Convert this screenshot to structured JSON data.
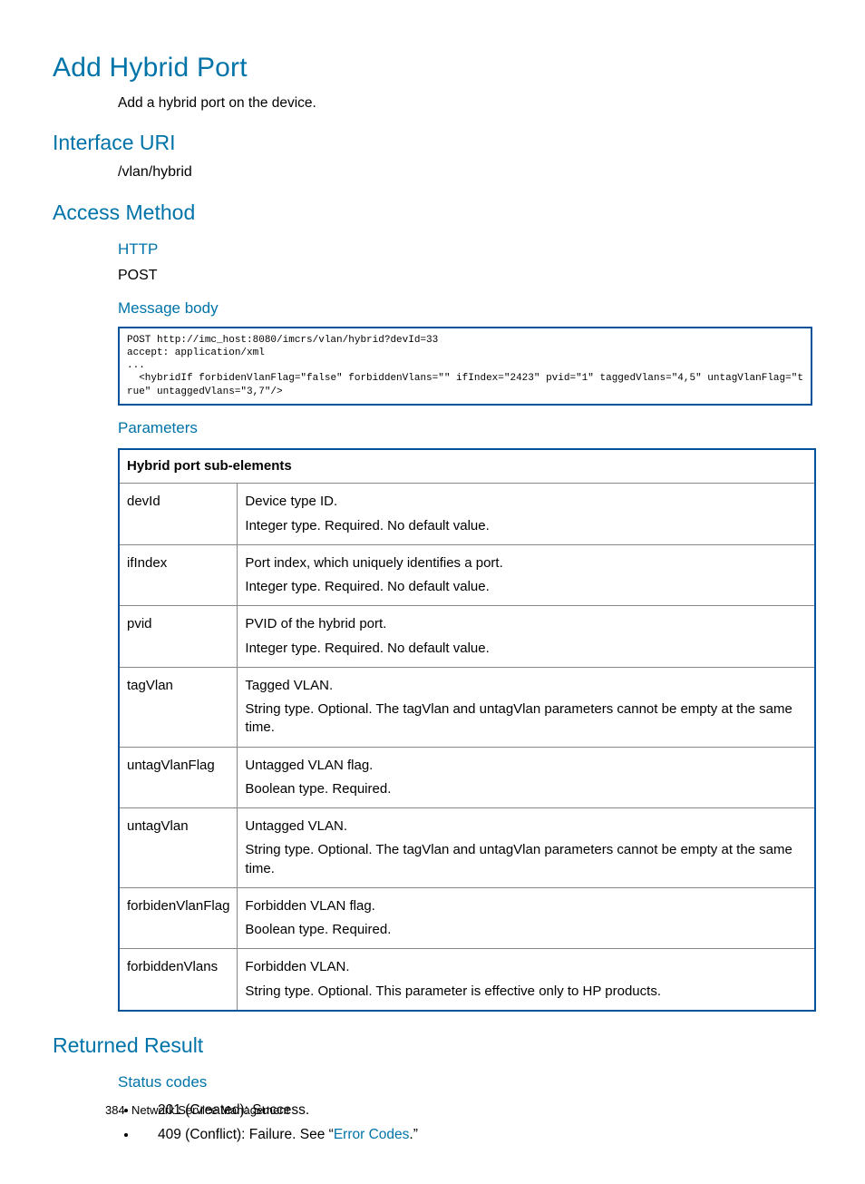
{
  "title": "Add Hybrid Port",
  "intro": "Add a hybrid port on the device.",
  "sections": {
    "interface_uri": {
      "heading": "Interface URI",
      "value": "/vlan/hybrid"
    },
    "access_method": {
      "heading": "Access Method",
      "http_heading": "HTTP",
      "http_method": "POST",
      "message_body_heading": "Message body",
      "code": "POST http://imc_host:8080/imcrs/vlan/hybrid?devId=33\naccept: application/xml\n...\n  <hybridIf forbidenVlanFlag=\"false\" forbiddenVlans=\"\" ifIndex=\"2423\" pvid=\"1\" taggedVlans=\"4,5\" untagVlanFlag=\"true\" untaggedVlans=\"3,7\"/>",
      "parameters_heading": "Parameters",
      "table_header": "Hybrid port sub-elements",
      "params": [
        {
          "name": "devId",
          "d1": "Device type ID.",
          "d2": "Integer type. Required. No default value."
        },
        {
          "name": "ifIndex",
          "d1": "Port index, which uniquely identifies a port.",
          "d2": "Integer type. Required. No default value."
        },
        {
          "name": "pvid",
          "d1": "PVID of the hybrid port.",
          "d2": "Integer type. Required. No default value."
        },
        {
          "name": "tagVlan",
          "d1": "Tagged VLAN.",
          "d2": "String type. Optional. The tagVlan and untagVlan parameters cannot be empty at the same time."
        },
        {
          "name": "untagVlanFlag",
          "d1": "Untagged VLAN flag.",
          "d2": "Boolean type. Required."
        },
        {
          "name": "untagVlan",
          "d1": "Untagged VLAN.",
          "d2": "String type. Optional. The tagVlan and untagVlan parameters cannot be empty at the same time."
        },
        {
          "name": "forbidenVlanFlag",
          "d1": "Forbidden VLAN flag.",
          "d2": "Boolean type. Required."
        },
        {
          "name": "forbiddenVlans",
          "d1": "Forbidden VLAN.",
          "d2": "String type. Optional. This parameter is effective only to HP products."
        }
      ]
    },
    "returned_result": {
      "heading": "Returned Result",
      "status_codes_heading": "Status codes",
      "items": [
        {
          "text": "201 (Created): Success."
        },
        {
          "prefix": "409 (Conflict): Failure. See “",
          "link": "Error Codes",
          "suffix": ".”"
        }
      ]
    }
  },
  "footer": {
    "page": "384",
    "label": "Network Service Management"
  },
  "colors": {
    "accent": "#0073a8",
    "border": "#00539b"
  }
}
